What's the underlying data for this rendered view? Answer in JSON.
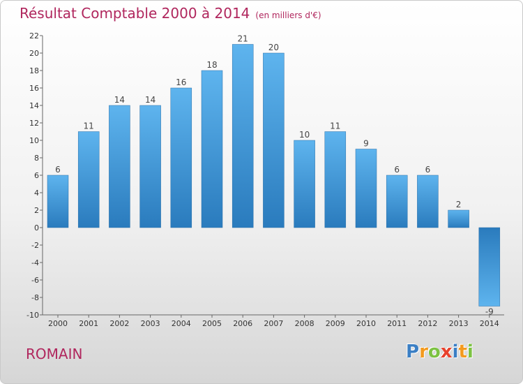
{
  "chart_data": {
    "type": "bar",
    "title": "Résultat Comptable 2000 à 2014",
    "subtitle": "(en milliers d'€)",
    "categories": [
      "2000",
      "2001",
      "2002",
      "2003",
      "2004",
      "2005",
      "2006",
      "2007",
      "2008",
      "2009",
      "2010",
      "2011",
      "2012",
      "2013",
      "2014"
    ],
    "values": [
      6,
      11,
      14,
      14,
      16,
      18,
      21,
      20,
      10,
      11,
      9,
      6,
      6,
      2,
      -9
    ],
    "ylim": [
      -10,
      22
    ],
    "yticks": [
      22,
      20,
      18,
      16,
      14,
      12,
      10,
      8,
      6,
      4,
      2,
      0,
      -2,
      -4,
      -6,
      -8,
      -10
    ],
    "xlabel": "",
    "ylabel": "",
    "grid": false,
    "colors": {
      "bar_light": "#5eb4ee",
      "bar_dark": "#2a7bbd"
    }
  },
  "footer": {
    "city": "ROMAIN",
    "logo_letters": [
      {
        "ch": "P",
        "color": "#3b7fc4"
      },
      {
        "ch": "r",
        "color": "#f39a1e"
      },
      {
        "ch": "o",
        "color": "#7cc242"
      },
      {
        "ch": "x",
        "color": "#e8412c"
      },
      {
        "ch": "i",
        "color": "#3b7fc4"
      },
      {
        "ch": "t",
        "color": "#f39a1e"
      },
      {
        "ch": "i",
        "color": "#7cc242"
      }
    ]
  },
  "colors": {
    "accent": "#b0265d"
  }
}
